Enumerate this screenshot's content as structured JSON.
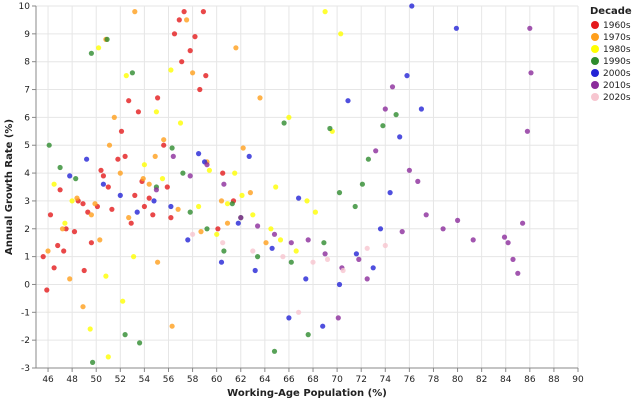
{
  "chart_data": {
    "type": "scatter",
    "title": "",
    "xlabel": "Working-Age Population (%)",
    "ylabel": "Annual Growth Rate (%)",
    "xlim": [
      45,
      90
    ],
    "ylim": [
      -3,
      10
    ],
    "x_ticks": [
      46,
      48,
      50,
      52,
      54,
      56,
      58,
      60,
      62,
      64,
      66,
      68,
      70,
      72,
      74,
      76,
      78,
      80,
      82,
      84,
      86,
      88,
      90
    ],
    "y_ticks": [
      -3,
      -2,
      -1,
      0,
      1,
      2,
      3,
      4,
      5,
      6,
      7,
      8,
      9,
      10
    ],
    "legend": {
      "title": "Decade",
      "position": "right"
    },
    "series": [
      {
        "name": "1960s",
        "color": "#e41a1c",
        "x": [
          45.6,
          46.2,
          47.0,
          48.5,
          49.3,
          50.1,
          51.0,
          52.4,
          53.2,
          54.0,
          55.1,
          56.5,
          57.3,
          58.2,
          59.1,
          60.5,
          46.8,
          47.5,
          48.9,
          50.6,
          51.8,
          52.9,
          53.8,
          54.7,
          55.6,
          56.9,
          57.8,
          58.6,
          47.3,
          49.6,
          51.3,
          53.5,
          55.9,
          57.1,
          45.9,
          46.5,
          48.2,
          50.4,
          52.1,
          54.4,
          56.2,
          58.9,
          60.1,
          61.4,
          49.0,
          52.7
        ],
        "y": [
          1.0,
          2.5,
          3.4,
          3.0,
          2.6,
          2.8,
          3.5,
          4.6,
          3.2,
          2.8,
          6.7,
          9.0,
          9.8,
          8.9,
          7.5,
          4.0,
          1.4,
          2.0,
          2.9,
          3.9,
          4.5,
          2.2,
          3.7,
          2.5,
          5.0,
          9.5,
          8.4,
          7.0,
          1.2,
          1.5,
          2.7,
          6.2,
          3.5,
          8.0,
          -0.2,
          0.6,
          1.9,
          4.1,
          5.5,
          3.1,
          2.4,
          9.8,
          2.0,
          3.0,
          0.5,
          6.6
        ]
      },
      {
        "name": "1970s",
        "color": "#ff9f1c",
        "x": [
          46.0,
          47.2,
          48.4,
          49.6,
          50.8,
          52.0,
          53.2,
          54.4,
          55.6,
          56.8,
          58.0,
          59.2,
          60.4,
          61.6,
          62.8,
          63.6,
          50.3,
          51.5,
          52.7,
          53.9,
          55.1,
          56.3,
          57.5,
          47.8,
          48.9,
          51.1,
          54.9,
          58.7,
          60.9,
          62.2,
          64.1,
          49.9
        ],
        "y": [
          1.2,
          2.0,
          3.1,
          2.5,
          8.8,
          4.0,
          9.8,
          3.6,
          5.2,
          2.7,
          7.6,
          4.4,
          3.0,
          8.5,
          3.3,
          6.7,
          1.6,
          6.0,
          2.4,
          3.8,
          0.8,
          -1.5,
          9.5,
          0.2,
          -0.8,
          5.0,
          4.6,
          1.9,
          2.2,
          4.9,
          1.5,
          2.9
        ]
      },
      {
        "name": "1980s",
        "color": "#ffff00",
        "x": [
          46.5,
          48.0,
          49.5,
          51.0,
          52.5,
          54.0,
          55.5,
          57.0,
          58.5,
          60.0,
          61.5,
          63.0,
          64.5,
          66.0,
          67.5,
          69.0,
          69.6,
          70.3,
          47.4,
          50.2,
          53.1,
          56.2,
          59.4,
          62.1,
          65.3,
          68.2,
          50.8,
          52.2,
          55.0,
          60.9,
          64.9,
          66.6
        ],
        "y": [
          3.6,
          3.0,
          -1.6,
          -2.6,
          7.5,
          4.3,
          3.8,
          5.8,
          2.8,
          1.8,
          4.0,
          2.5,
          2.0,
          6.0,
          3.0,
          9.8,
          5.5,
          9.0,
          2.2,
          8.5,
          1.0,
          7.7,
          4.1,
          3.2,
          1.6,
          2.6,
          0.3,
          -0.6,
          6.2,
          2.9,
          3.5,
          1.2
        ]
      },
      {
        "name": "1990s",
        "color": "#2e8b2e",
        "x": [
          46.1,
          47.0,
          48.3,
          49.7,
          50.9,
          52.4,
          53.6,
          55.0,
          56.3,
          57.8,
          59.2,
          60.6,
          62.0,
          63.4,
          64.8,
          66.2,
          67.6,
          68.9,
          70.2,
          71.5,
          72.6,
          73.8,
          49.6,
          53.0,
          57.2,
          61.3,
          65.6,
          69.4,
          72.1,
          74.9
        ],
        "y": [
          5.0,
          4.2,
          3.8,
          -2.8,
          8.8,
          -1.8,
          -2.1,
          3.5,
          4.9,
          2.6,
          2.0,
          1.2,
          2.4,
          1.0,
          -2.4,
          0.8,
          -1.8,
          1.5,
          3.3,
          2.8,
          4.5,
          5.7,
          8.3,
          7.6,
          4.0,
          2.9,
          5.8,
          5.6,
          3.6,
          6.1
        ]
      },
      {
        "name": "2000s",
        "color": "#2323d6",
        "x": [
          47.8,
          49.2,
          50.6,
          52.0,
          53.4,
          54.8,
          56.2,
          57.6,
          59.0,
          60.4,
          61.8,
          63.2,
          64.6,
          66.0,
          67.4,
          68.8,
          70.2,
          71.6,
          73.0,
          74.4,
          75.8,
          76.2,
          77.0,
          79.9,
          58.5,
          62.7,
          66.8,
          70.9,
          73.6,
          75.2
        ],
        "y": [
          3.9,
          4.5,
          3.6,
          3.2,
          2.6,
          3.0,
          2.8,
          1.6,
          4.4,
          0.8,
          2.2,
          0.5,
          1.3,
          -1.2,
          0.2,
          -1.5,
          0.0,
          1.1,
          0.6,
          3.3,
          7.5,
          10.0,
          6.3,
          9.2,
          4.7,
          4.6,
          3.1,
          6.6,
          2.0,
          5.3
        ]
      },
      {
        "name": "2010s",
        "color": "#8b2c9b",
        "x": [
          55.0,
          56.4,
          57.8,
          59.2,
          60.6,
          62.0,
          63.4,
          64.8,
          66.2,
          67.6,
          69.0,
          70.4,
          71.8,
          73.2,
          74.6,
          76.0,
          77.4,
          78.8,
          80.0,
          84.2,
          84.6,
          85.0,
          85.4,
          85.8,
          86.0,
          86.1,
          74.0,
          75.4,
          72.5,
          70.1,
          81.3,
          83.9,
          76.7
        ],
        "y": [
          3.4,
          4.6,
          3.9,
          4.3,
          3.6,
          2.4,
          2.1,
          1.8,
          1.5,
          1.6,
          1.1,
          0.6,
          0.9,
          4.8,
          7.1,
          4.1,
          2.5,
          2.0,
          2.3,
          1.5,
          0.9,
          0.4,
          2.2,
          5.5,
          9.2,
          7.6,
          6.3,
          1.9,
          0.2,
          -1.2,
          1.6,
          1.7,
          3.7
        ]
      },
      {
        "name": "2020s",
        "color": "#f7c6d0",
        "x": [
          58.0,
          60.5,
          63.0,
          65.5,
          68.0,
          70.5,
          72.5,
          74.0,
          66.8,
          69.2
        ],
        "y": [
          1.8,
          1.5,
          1.2,
          1.0,
          0.8,
          0.5,
          1.3,
          1.4,
          -1.0,
          0.9
        ]
      }
    ]
  }
}
